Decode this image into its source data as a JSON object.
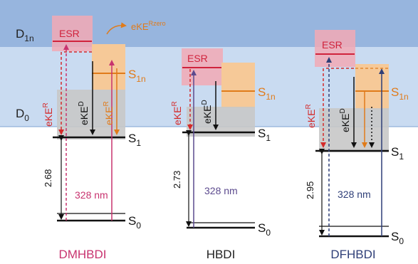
{
  "bands": {
    "upper_label": "D",
    "upper_sub": "1n",
    "lower_label": "D",
    "lower_sub": "0"
  },
  "levels": {
    "s1_label": "S",
    "s1_sub": "1",
    "s0_label": "S",
    "s0_sub": "0",
    "s1n_label": "S",
    "s1n_sub": "1n"
  },
  "annotations": {
    "esr": "ESR",
    "eke_letters": "eKE",
    "sup_r": "R",
    "sup_d": "D",
    "sup_rzero": "Rzero"
  },
  "panels": [
    {
      "name": "DMHBDI",
      "gap_value": "2.68",
      "wavelength": "328 nm",
      "name_color": "#c8336f",
      "wl_color": "#c8336f"
    },
    {
      "name": "HBDI",
      "gap_value": "2.73",
      "wavelength": "328 nm",
      "name_color": "#222222",
      "wl_color": "#5c4a8e"
    },
    {
      "name": "DFHBDI",
      "gap_value": "2.95",
      "wavelength": "328 nm",
      "name_color": "#2f3f78",
      "wl_color": "#2f3f78"
    }
  ],
  "colors": {
    "band_upper": "#97b5de",
    "band_lower": "#c9dbf1",
    "esr_box": "#f2a9b5",
    "esr_line": "#d0233c",
    "s1n_box": "#f6c998",
    "s1n_line": "#e07b1a",
    "gray_box": "#c8c8c8",
    "red": "#d42a2a",
    "magenta": "#c8336f",
    "purple": "#5c4a8e",
    "navy": "#2f3f78"
  }
}
